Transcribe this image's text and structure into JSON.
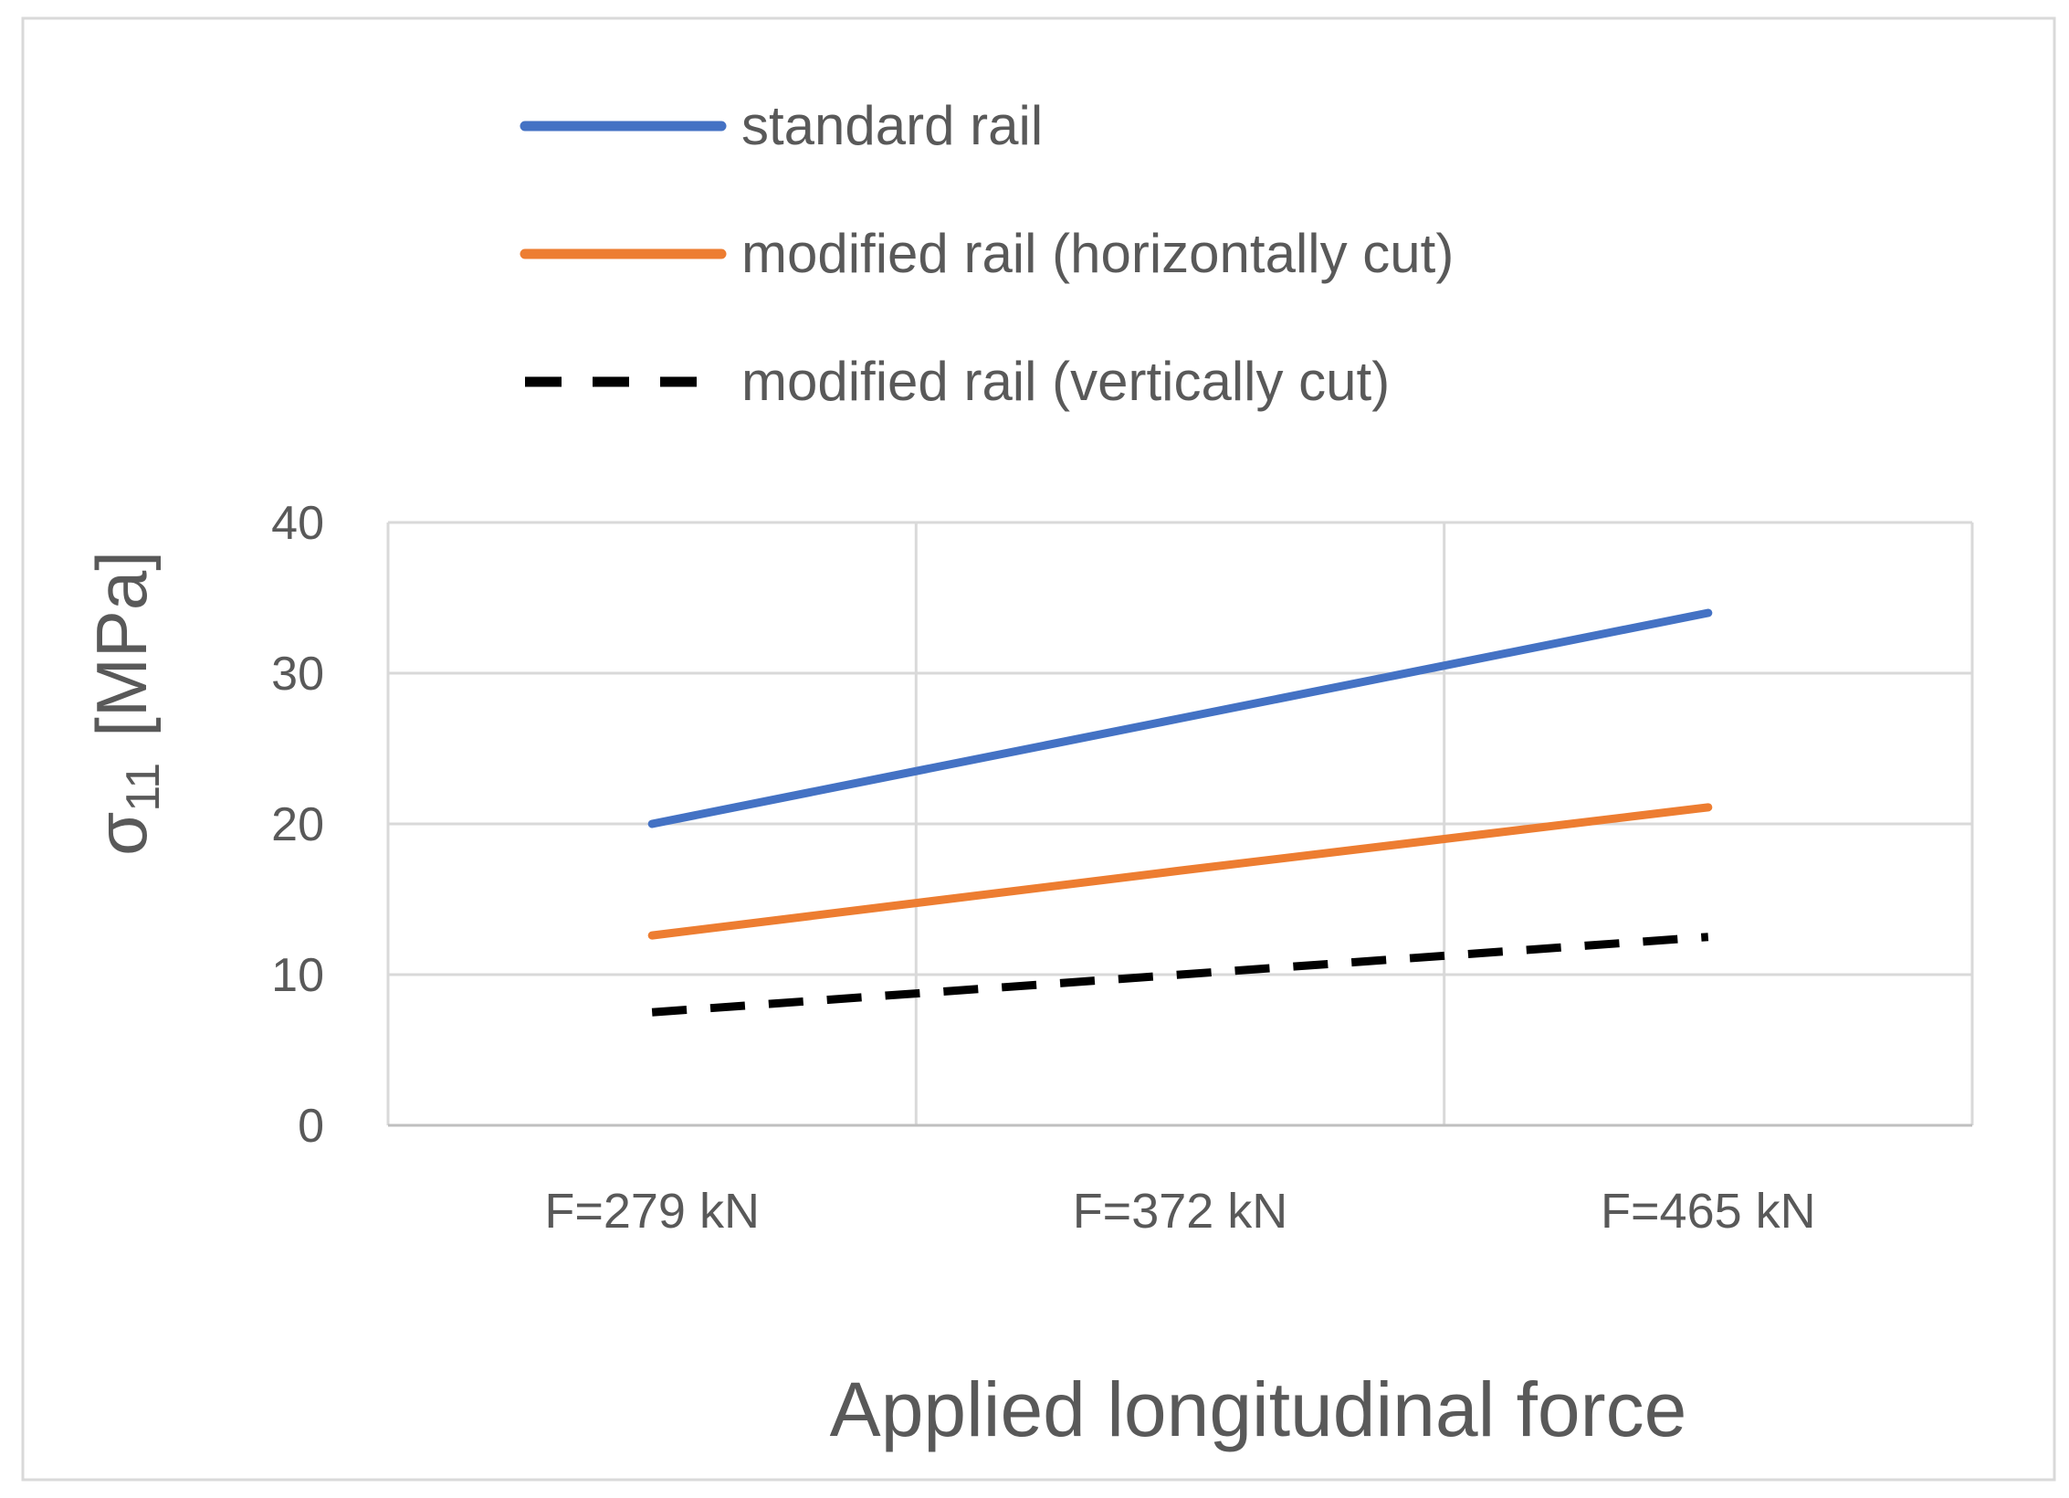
{
  "chart_data": {
    "type": "line",
    "title": "",
    "xlabel": "Applied longitudinal force",
    "ylabel": {
      "symbol": "σ",
      "subscript": "11",
      "unit": "[MPa]"
    },
    "categories": [
      "F=279 kN",
      "F=372 kN",
      "F=465 kN"
    ],
    "ylim": [
      0,
      40
    ],
    "yticks": [
      0,
      10,
      20,
      30,
      40
    ],
    "grid": true,
    "legend_position": "top",
    "series": [
      {
        "name": "standard rail",
        "values": [
          20,
          27,
          34
        ],
        "color": "#4472C4",
        "dash": "solid"
      },
      {
        "name": "modified rail (horizontally cut)",
        "values": [
          12.6,
          16.9,
          21.1
        ],
        "color": "#ED7D31",
        "dash": "solid"
      },
      {
        "name": "modified rail (vertically cut)",
        "values": [
          7.5,
          10,
          12.5
        ],
        "color": "#000000",
        "dash": "dashed"
      }
    ],
    "colors": {
      "axis_text": "#595959",
      "grid": "#D9D9D9",
      "border": "#D9D9D9"
    }
  }
}
